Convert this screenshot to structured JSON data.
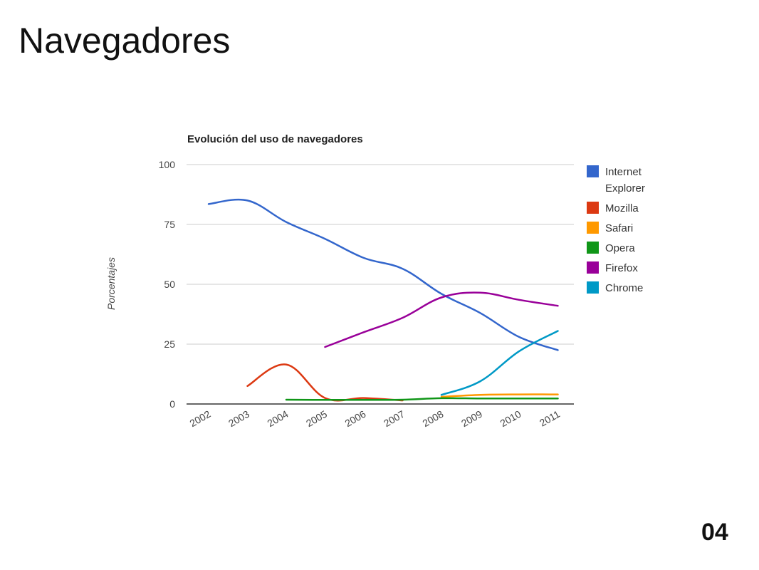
{
  "slide": {
    "title": "Navegadores",
    "page_number": "04"
  },
  "chart_data": {
    "type": "line",
    "title": "Evolución del uso de navegadores",
    "xlabel": "",
    "ylabel": "Porcentajes",
    "ylim": [
      0,
      100
    ],
    "yticks": [
      0,
      25,
      50,
      75,
      100
    ],
    "categories": [
      "2002",
      "2003",
      "2004",
      "2005",
      "2006",
      "2007",
      "2008",
      "2009",
      "2010",
      "2011"
    ],
    "grid": true,
    "legend_position": "right",
    "series": [
      {
        "name": "Internet Explorer",
        "legend_lines": [
          "Internet",
          "Explorer"
        ],
        "color": "#3366cc",
        "values": [
          83.5,
          85,
          76,
          69,
          61,
          56.5,
          46,
          38,
          28,
          22.5
        ]
      },
      {
        "name": "Mozilla",
        "legend_lines": [
          "Mozilla"
        ],
        "color": "#dc3912",
        "values": [
          null,
          7.5,
          16.5,
          2.5,
          2.5,
          1.5,
          null,
          null,
          null,
          null
        ]
      },
      {
        "name": "Safari",
        "legend_lines": [
          "Safari"
        ],
        "color": "#ff9900",
        "values": [
          null,
          null,
          null,
          null,
          null,
          null,
          3,
          3.8,
          4,
          4
        ]
      },
      {
        "name": "Opera",
        "legend_lines": [
          "Opera"
        ],
        "color": "#109618",
        "values": [
          null,
          null,
          1.8,
          1.7,
          1.7,
          1.8,
          2.4,
          2.3,
          2.3,
          2.3
        ]
      },
      {
        "name": "Firefox",
        "legend_lines": [
          "Firefox"
        ],
        "color": "#990099",
        "values": [
          null,
          null,
          null,
          23.8,
          30,
          36,
          44.5,
          46.5,
          43.5,
          41
        ]
      },
      {
        "name": "Chrome",
        "legend_lines": [
          "Chrome"
        ],
        "color": "#0099c6",
        "values": [
          null,
          null,
          null,
          null,
          null,
          null,
          3.8,
          9.5,
          22,
          30.5
        ]
      }
    ]
  }
}
